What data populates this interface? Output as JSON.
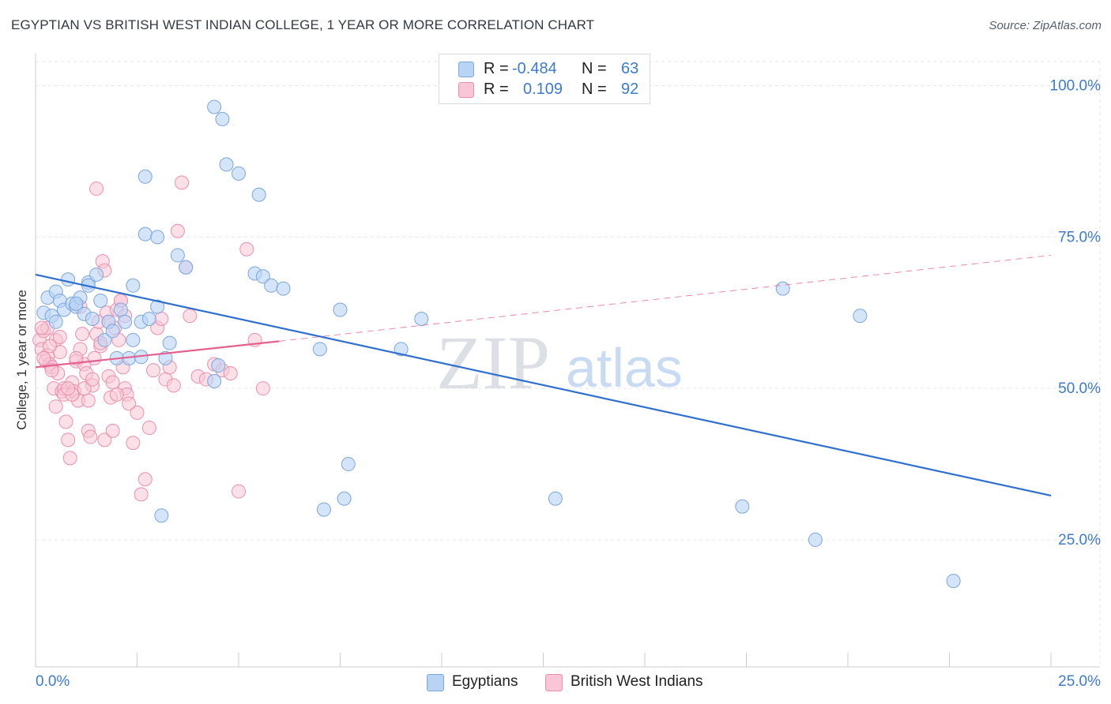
{
  "title": "EGYPTIAN VS BRITISH WEST INDIAN COLLEGE, 1 YEAR OR MORE CORRELATION CHART",
  "source": "Source: ZipAtlas.com",
  "legend": {
    "rows": [
      {
        "r_label": "R =",
        "r_value": "-0.484",
        "n_label": "N =",
        "n_value": "63"
      },
      {
        "r_label": "R =",
        "r_value": "0.109",
        "n_label": "N =",
        "n_value": "92"
      }
    ]
  },
  "watermark": {
    "zip": "ZIP",
    "atlas": "atlas"
  },
  "colors": {
    "egyptians_fill": "#b9d3f5",
    "egyptians_stroke": "#7da6dd",
    "egyptians_line": "#2f6fcf",
    "bwi_fill": "#f8c6d6",
    "bwi_stroke": "#ec8fae",
    "bwi_line": "#e4608f",
    "axis_label": "#3d7bd0",
    "grid": "#e3e6ea"
  },
  "chart_data": {
    "type": "scatter",
    "title": "EGYPTIAN VS BRITISH WEST INDIAN COLLEGE, 1 YEAR OR MORE CORRELATION CHART",
    "xlabel": "",
    "ylabel": "College, 1 year or more",
    "xlim": [
      0,
      25
    ],
    "ylim": [
      4,
      104
    ],
    "x_tick_labels": [
      "0.0%",
      "25.0%"
    ],
    "y_tick_labels": [
      "25.0%",
      "50.0%",
      "75.0%",
      "100.0%"
    ],
    "y_ticks": [
      25,
      50,
      75,
      100
    ],
    "legend_placement": "bottom-center",
    "series": [
      {
        "name": "Egyptians",
        "R": -0.484,
        "N": 63,
        "trend": {
          "x0": 0,
          "y0": 68.8,
          "x1": 25,
          "y1": 32.3
        },
        "points": [
          [
            0.2,
            62.5
          ],
          [
            0.3,
            65.0
          ],
          [
            0.4,
            62.0
          ],
          [
            0.5,
            66.0
          ],
          [
            0.6,
            64.5
          ],
          [
            0.7,
            63.0
          ],
          [
            0.8,
            68.0
          ],
          [
            0.9,
            64.0
          ],
          [
            1.0,
            63.5
          ],
          [
            1.1,
            65.0
          ],
          [
            1.2,
            62.3
          ],
          [
            1.3,
            67.5
          ],
          [
            1.4,
            61.5
          ],
          [
            1.5,
            68.8
          ],
          [
            1.6,
            64.5
          ],
          [
            1.7,
            58.0
          ],
          [
            1.8,
            61.0
          ],
          [
            1.9,
            59.5
          ],
          [
            2.0,
            55.0
          ],
          [
            2.1,
            63.0
          ],
          [
            2.2,
            61.0
          ],
          [
            2.3,
            55.0
          ],
          [
            2.4,
            67.0
          ],
          [
            2.4,
            58.0
          ],
          [
            2.6,
            55.2
          ],
          [
            2.6,
            61.0
          ],
          [
            2.7,
            85.0
          ],
          [
            3.0,
            63.5
          ],
          [
            3.1,
            29.0
          ],
          [
            3.2,
            55.0
          ],
          [
            3.3,
            57.5
          ],
          [
            3.5,
            72.0
          ],
          [
            3.7,
            70.0
          ],
          [
            4.4,
            51.2
          ],
          [
            4.5,
            53.8
          ],
          [
            4.7,
            87.0
          ],
          [
            5.0,
            85.5
          ],
          [
            5.4,
            69.0
          ],
          [
            5.6,
            68.5
          ],
          [
            5.8,
            67.0
          ],
          [
            6.1,
            66.5
          ],
          [
            7.0,
            56.5
          ],
          [
            7.1,
            30.0
          ],
          [
            7.5,
            63.0
          ],
          [
            7.6,
            31.8
          ],
          [
            7.7,
            37.5
          ],
          [
            9.0,
            56.5
          ],
          [
            9.5,
            61.5
          ],
          [
            12.8,
            31.8
          ],
          [
            17.4,
            30.5
          ],
          [
            18.4,
            66.5
          ],
          [
            19.2,
            25.0
          ],
          [
            20.3,
            62.0
          ],
          [
            22.6,
            18.2
          ],
          [
            2.7,
            75.5
          ],
          [
            4.4,
            96.5
          ],
          [
            4.6,
            94.5
          ],
          [
            5.5,
            82.0
          ],
          [
            3.0,
            75.0
          ],
          [
            0.5,
            61.0
          ],
          [
            1.0,
            64.0
          ],
          [
            2.8,
            61.5
          ],
          [
            1.3,
            67.0
          ]
        ]
      },
      {
        "name": "British West Indians",
        "R": 0.109,
        "N": 92,
        "trend": {
          "x0": 0,
          "y0": 53.5,
          "x1": 6.0,
          "y1": 57.8,
          "dashed_to_x": 25,
          "dashed_to_y": 72.0
        },
        "points": [
          [
            0.1,
            58.0
          ],
          [
            0.15,
            56.5
          ],
          [
            0.2,
            59.5
          ],
          [
            0.25,
            54.5
          ],
          [
            0.3,
            55.5
          ],
          [
            0.35,
            54.0
          ],
          [
            0.4,
            53.5
          ],
          [
            0.45,
            50.0
          ],
          [
            0.5,
            47.0
          ],
          [
            0.55,
            52.5
          ],
          [
            0.6,
            56.0
          ],
          [
            0.65,
            49.5
          ],
          [
            0.7,
            50.0
          ],
          [
            0.75,
            44.5
          ],
          [
            0.8,
            41.5
          ],
          [
            0.85,
            38.5
          ],
          [
            0.9,
            51.0
          ],
          [
            0.95,
            49.5
          ],
          [
            1.0,
            54.5
          ],
          [
            1.05,
            48.0
          ],
          [
            1.1,
            56.5
          ],
          [
            1.15,
            59.0
          ],
          [
            1.2,
            54.0
          ],
          [
            1.25,
            52.5
          ],
          [
            1.3,
            43.0
          ],
          [
            1.35,
            42.0
          ],
          [
            1.4,
            50.5
          ],
          [
            1.45,
            55.0
          ],
          [
            1.5,
            59.0
          ],
          [
            1.55,
            61.0
          ],
          [
            1.6,
            57.0
          ],
          [
            1.65,
            71.0
          ],
          [
            1.7,
            69.5
          ],
          [
            1.75,
            62.5
          ],
          [
            1.8,
            52.0
          ],
          [
            1.85,
            48.5
          ],
          [
            1.9,
            51.0
          ],
          [
            1.95,
            60.0
          ],
          [
            2.0,
            63.0
          ],
          [
            2.05,
            58.0
          ],
          [
            2.1,
            64.5
          ],
          [
            2.15,
            53.5
          ],
          [
            2.2,
            50.0
          ],
          [
            2.25,
            49.0
          ],
          [
            2.3,
            47.5
          ],
          [
            2.4,
            41.0
          ],
          [
            2.5,
            46.0
          ],
          [
            2.6,
            32.5
          ],
          [
            2.7,
            35.0
          ],
          [
            2.8,
            43.5
          ],
          [
            2.9,
            53.0
          ],
          [
            3.0,
            60.0
          ],
          [
            3.1,
            61.5
          ],
          [
            3.2,
            51.5
          ],
          [
            3.3,
            53.5
          ],
          [
            3.4,
            50.5
          ],
          [
            3.5,
            76.0
          ],
          [
            3.6,
            84.0
          ],
          [
            3.7,
            70.0
          ],
          [
            3.8,
            62.0
          ],
          [
            4.0,
            52.0
          ],
          [
            4.2,
            51.5
          ],
          [
            4.4,
            54.0
          ],
          [
            4.6,
            53.0
          ],
          [
            4.8,
            52.5
          ],
          [
            5.0,
            33.0
          ],
          [
            5.2,
            73.0
          ],
          [
            5.4,
            58.0
          ],
          [
            5.6,
            50.0
          ],
          [
            0.3,
            60.0
          ],
          [
            0.5,
            58.0
          ],
          [
            0.7,
            49.0
          ],
          [
            0.9,
            49.0
          ],
          [
            1.1,
            63.5
          ],
          [
            1.3,
            48.0
          ],
          [
            1.5,
            83.0
          ],
          [
            1.7,
            41.5
          ],
          [
            1.9,
            43.0
          ],
          [
            2.1,
            64.5
          ],
          [
            0.2,
            55.0
          ],
          [
            0.4,
            53.0
          ],
          [
            0.6,
            58.5
          ],
          [
            0.8,
            50.0
          ],
          [
            1.0,
            55.0
          ],
          [
            1.2,
            50.0
          ],
          [
            1.4,
            51.5
          ],
          [
            1.6,
            57.5
          ],
          [
            1.8,
            61.0
          ],
          [
            2.0,
            49.0
          ],
          [
            2.2,
            62.0
          ],
          [
            0.15,
            60.0
          ],
          [
            0.35,
            57.0
          ]
        ]
      }
    ]
  },
  "bottom_legend": {
    "items": [
      {
        "label": "Egyptians"
      },
      {
        "label": "British West Indians"
      }
    ]
  }
}
